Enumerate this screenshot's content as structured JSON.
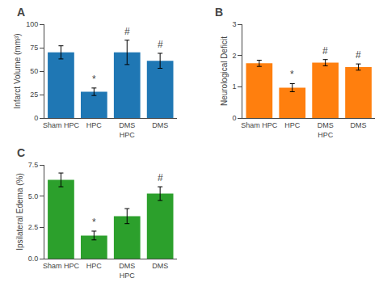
{
  "chart_data": [
    {
      "type": "bar",
      "title": "A",
      "ylabel": "Infarct Volume (mm³)",
      "categories": [
        "Sham HPC",
        "HPC",
        "DMS\nHPC",
        "DMS"
      ],
      "values": [
        70,
        28,
        70,
        61
      ],
      "errors": [
        7,
        4,
        13,
        8
      ],
      "annotations": [
        {
          "category": "HPC",
          "text": "*"
        },
        {
          "category": "DMS\nHPC",
          "text": "#"
        },
        {
          "category": "DMS",
          "text": "#"
        }
      ],
      "ylim": [
        0,
        100
      ],
      "yticks": [
        0,
        25,
        50,
        75,
        100
      ],
      "grid": false
    },
    {
      "type": "bar",
      "title": "B",
      "ylabel": "Neurological Deficit",
      "categories": [
        "Sham HPC",
        "HPC",
        "DMS\nHPC",
        "DMS"
      ],
      "values": [
        1.75,
        0.97,
        1.77,
        1.63
      ],
      "errors": [
        0.1,
        0.13,
        0.1,
        0.1
      ],
      "annotations": [
        {
          "category": "HPC",
          "text": "*"
        },
        {
          "category": "DMS\nHPC",
          "text": "#"
        },
        {
          "category": "DMS",
          "text": "#"
        }
      ],
      "ylim": [
        0,
        3
      ],
      "yticks": [
        0,
        1,
        2,
        3
      ],
      "grid": false
    },
    {
      "type": "bar",
      "title": "C",
      "ylabel": "Ipsilateral Edema (%)",
      "categories": [
        "Sham HPC",
        "HPC",
        "DMS\nHPC",
        "DMS"
      ],
      "values": [
        6.3,
        1.85,
        3.4,
        5.2
      ],
      "errors": [
        0.55,
        0.35,
        0.6,
        0.55
      ],
      "annotations": [
        {
          "category": "HPC",
          "text": "*"
        },
        {
          "category": "DMS",
          "text": "#"
        }
      ],
      "ylim": [
        0,
        7.5
      ],
      "yticks": [
        {
          "value": 0,
          "label": "0.0"
        },
        2.5,
        {
          "value": 5,
          "label": "5.0"
        },
        7.5
      ],
      "grid": false
    }
  ]
}
